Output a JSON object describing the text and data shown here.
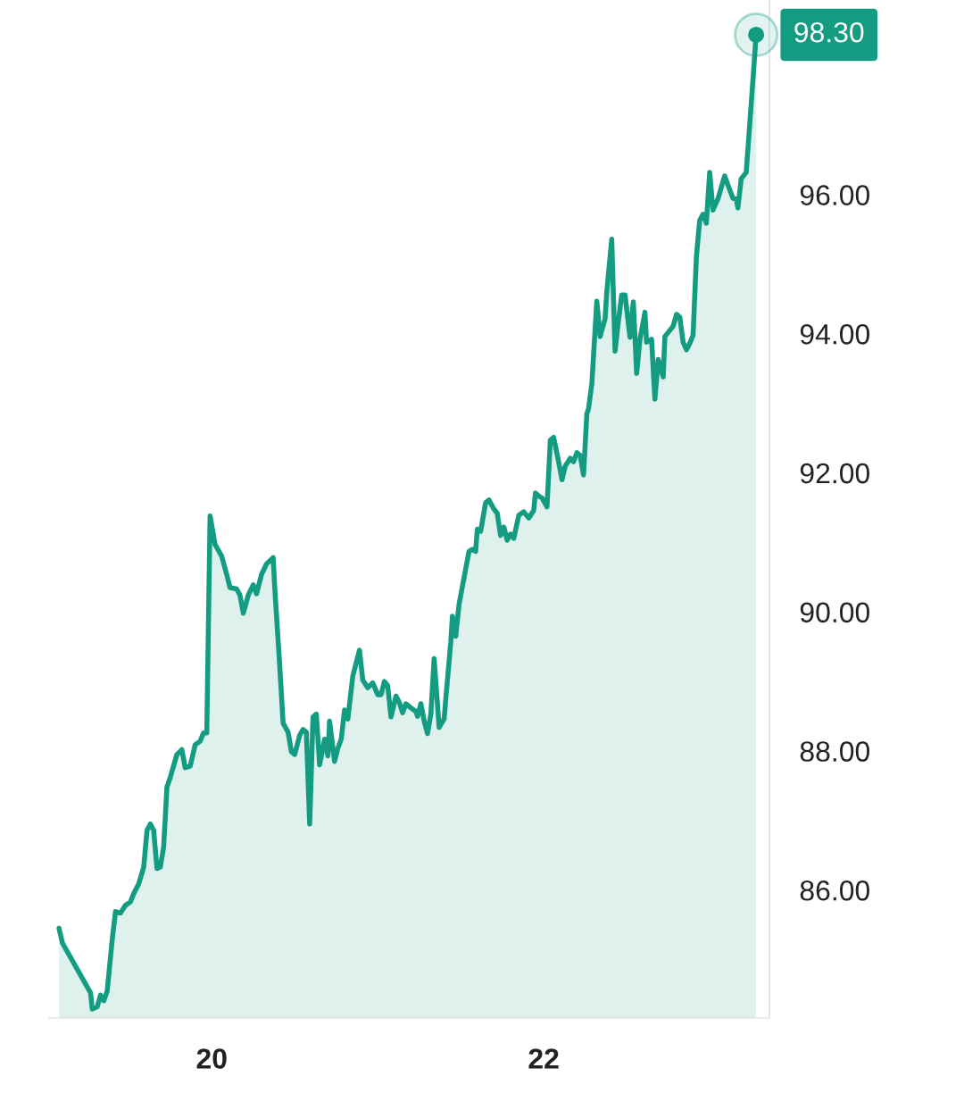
{
  "chart_data": {
    "type": "area",
    "x": [
      19.08,
      19.1,
      19.27,
      19.28,
      19.31,
      19.33,
      19.35,
      19.37,
      19.4,
      19.42,
      19.45,
      19.48,
      19.51,
      19.53,
      19.56,
      19.59,
      19.61,
      19.63,
      19.65,
      19.67,
      19.69,
      19.71,
      19.73,
      19.75,
      19.79,
      19.82,
      19.84,
      19.87,
      19.9,
      19.93,
      19.95,
      19.97,
      19.99,
      20.02,
      20.06,
      20.09,
      20.11,
      20.15,
      20.17,
      20.19,
      20.22,
      20.25,
      20.27,
      20.3,
      20.33,
      20.37,
      20.38,
      20.41,
      20.43,
      20.46,
      20.48,
      20.5,
      20.53,
      20.55,
      20.57,
      20.59,
      20.61,
      20.63,
      20.65,
      20.68,
      20.7,
      20.71,
      20.74,
      20.76,
      20.78,
      20.8,
      20.82,
      20.85,
      20.89,
      20.91,
      20.94,
      20.97,
      21.0,
      21.02,
      21.04,
      21.06,
      21.08,
      21.11,
      21.13,
      21.15,
      21.17,
      21.2,
      21.23,
      21.24,
      21.26,
      21.28,
      21.3,
      21.32,
      21.34,
      21.37,
      21.4,
      21.41,
      21.44,
      21.45,
      21.47,
      21.49,
      21.52,
      21.55,
      21.57,
      21.59,
      21.6,
      21.62,
      21.65,
      21.67,
      21.7,
      21.72,
      21.74,
      21.76,
      21.78,
      21.8,
      21.82,
      21.85,
      21.88,
      21.91,
      21.94,
      21.95,
      21.98,
      21.99,
      22.02,
      22.04,
      22.06,
      22.09,
      22.11,
      22.13,
      22.16,
      22.18,
      22.2,
      22.22,
      22.24,
      22.26,
      22.27,
      22.29,
      22.32,
      22.34,
      22.37,
      22.38,
      22.41,
      22.43,
      22.45,
      22.47,
      22.49,
      22.52,
      22.54,
      22.56,
      22.58,
      22.61,
      22.62,
      22.65,
      22.67,
      22.69,
      22.72,
      22.73,
      22.76,
      22.78,
      22.8,
      22.82,
      22.84,
      22.86,
      22.88,
      22.9,
      22.92,
      22.94,
      22.96,
      22.98,
      23.0,
      23.02,
      23.05,
      23.09,
      23.11,
      23.14,
      23.16,
      23.17,
      23.19,
      23.22,
      23.24,
      23.28
    ],
    "series": [
      {
        "color": "#139c81",
        "values": [
          85.45,
          85.24,
          84.52,
          84.29,
          84.32,
          84.49,
          84.41,
          84.55,
          85.28,
          85.69,
          85.67,
          85.78,
          85.83,
          85.95,
          86.09,
          86.33,
          86.86,
          86.95,
          86.86,
          86.31,
          86.33,
          86.62,
          87.48,
          87.62,
          87.95,
          88.02,
          87.76,
          87.78,
          88.09,
          88.14,
          88.26,
          88.26,
          91.38,
          90.97,
          90.8,
          90.54,
          90.35,
          90.33,
          90.24,
          89.98,
          90.24,
          90.39,
          90.26,
          90.54,
          90.69,
          90.78,
          90.33,
          89.21,
          88.4,
          88.27,
          87.99,
          87.95,
          88.23,
          88.31,
          88.27,
          86.95,
          88.49,
          88.53,
          87.8,
          88.17,
          87.93,
          88.43,
          87.85,
          88.04,
          88.17,
          88.59,
          88.46,
          89.08,
          89.45,
          89.02,
          88.91,
          88.98,
          88.81,
          88.81,
          89.0,
          88.94,
          88.49,
          88.79,
          88.7,
          88.55,
          88.68,
          88.62,
          88.57,
          88.5,
          88.68,
          88.43,
          88.25,
          88.53,
          89.33,
          88.34,
          88.46,
          88.75,
          89.56,
          89.94,
          89.65,
          90.11,
          90.49,
          90.87,
          90.9,
          90.87,
          91.19,
          91.16,
          91.57,
          91.61,
          91.48,
          91.42,
          91.1,
          91.22,
          91.03,
          91.12,
          91.06,
          91.39,
          91.44,
          91.35,
          91.46,
          91.71,
          91.65,
          91.64,
          91.51,
          92.47,
          92.51,
          92.16,
          91.9,
          92.1,
          92.21,
          92.16,
          92.29,
          92.25,
          91.97,
          92.85,
          92.92,
          93.28,
          94.47,
          93.96,
          94.22,
          94.6,
          95.36,
          93.75,
          94.18,
          94.56,
          94.56,
          93.95,
          94.46,
          93.43,
          93.92,
          94.31,
          93.88,
          93.92,
          93.06,
          93.63,
          93.38,
          93.96,
          94.05,
          94.11,
          94.28,
          94.24,
          93.88,
          93.77,
          93.86,
          93.98,
          95.11,
          95.63,
          95.72,
          95.59,
          96.32,
          95.78,
          95.94,
          96.27,
          96.14,
          95.95,
          95.94,
          95.81,
          96.23,
          96.32,
          96.96,
          98.3
        ]
      }
    ],
    "xlim": [
      19.02,
      23.36
    ],
    "xticks": [
      20,
      22
    ],
    "ylim": [
      84.16,
      98.8
    ],
    "yticks": [
      {
        "value": 86,
        "label": "86.00"
      },
      {
        "value": 88,
        "label": "88.00"
      },
      {
        "value": 90,
        "label": "90.00"
      },
      {
        "value": 92,
        "label": "92.00"
      },
      {
        "value": 94,
        "label": "94.00"
      },
      {
        "value": 96,
        "label": "96.00"
      }
    ],
    "annotations": [
      {
        "text": "98.30",
        "x": 23.28,
        "y": 98.3
      }
    ]
  }
}
